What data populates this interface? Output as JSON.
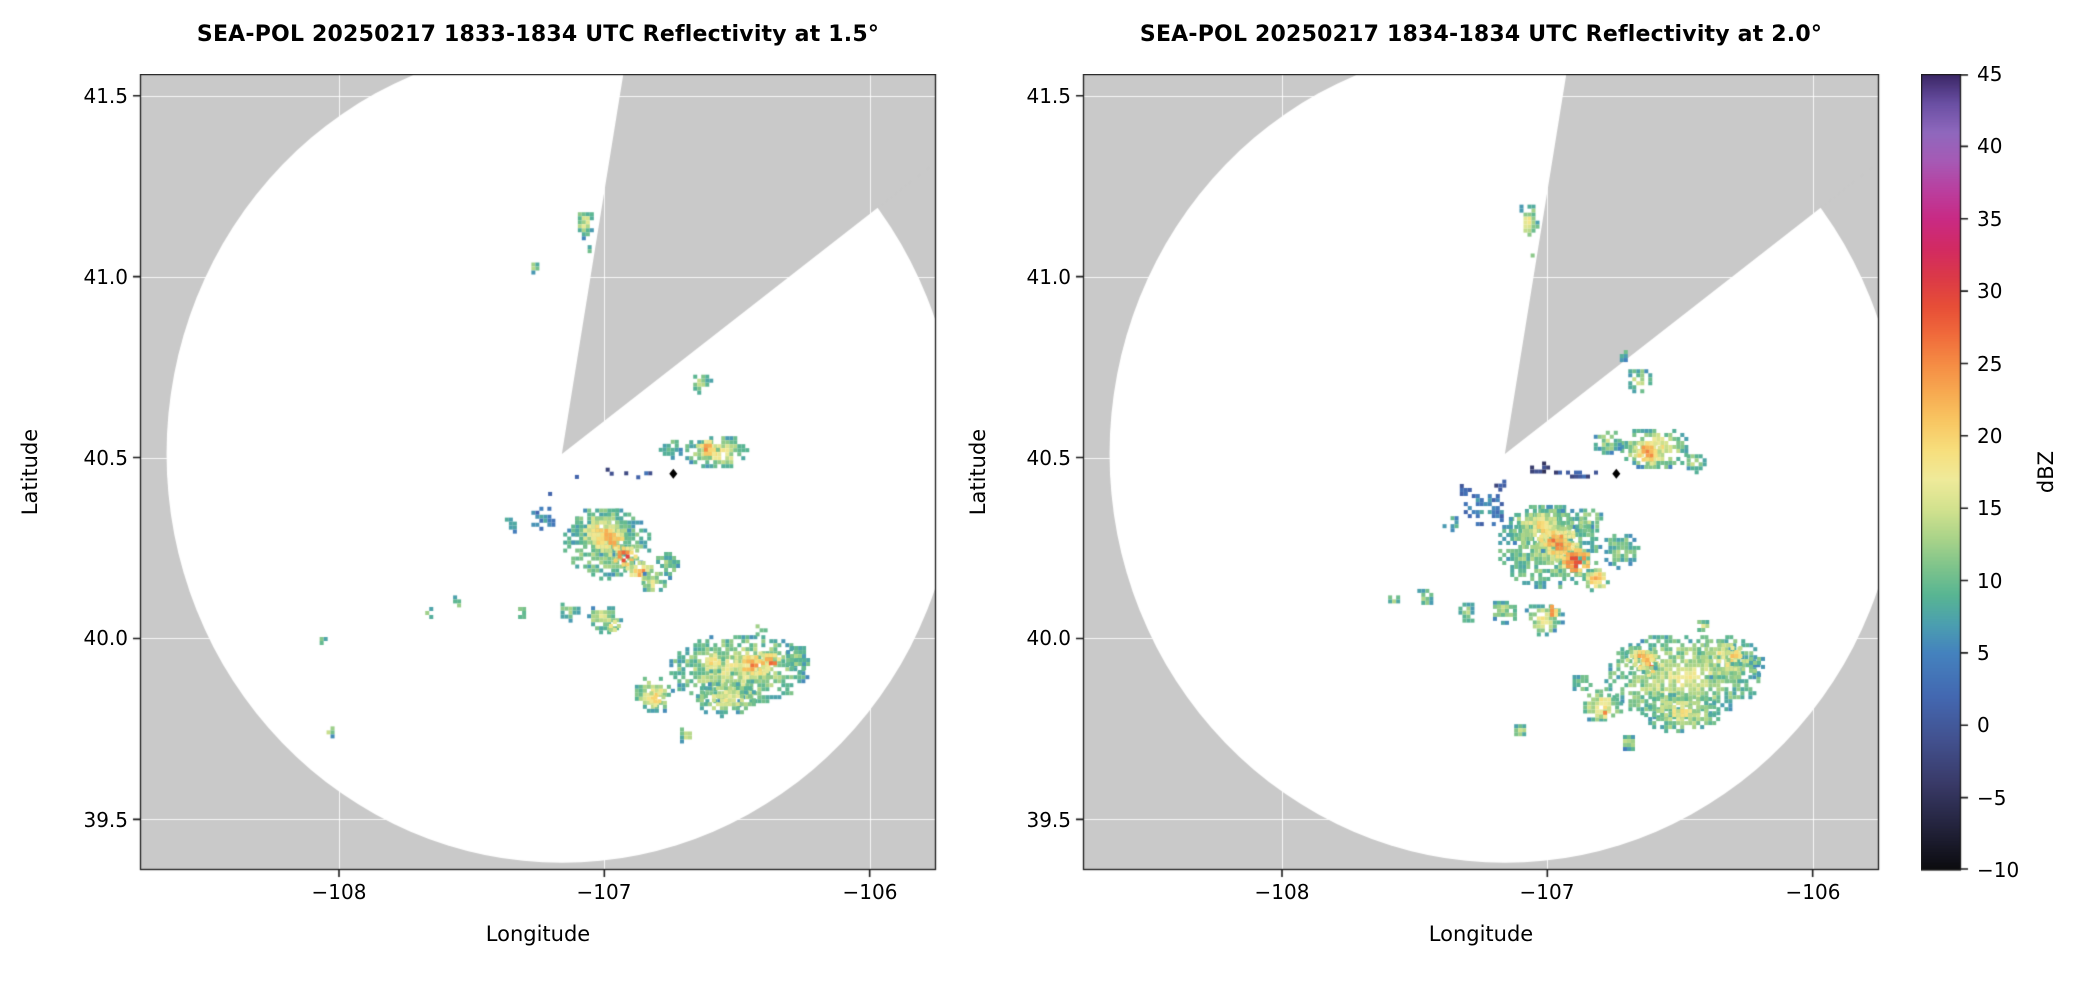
{
  "figure": {
    "background": "#ffffff"
  },
  "colors": {
    "map_background": "#c9c9c9",
    "radar_clear": "#ffffff",
    "grid": "#ffffff",
    "frame": "#1a1a1a",
    "marker": "#000000"
  },
  "chart_data": [
    {
      "type": "heatmap",
      "subtype": "radar-ppi-reflectivity",
      "title": "SEA-POL 20250217 1833-1834 UTC Reflectivity at 1.5°",
      "xlabel": "Longitude",
      "ylabel": "Latitude",
      "xlim": [
        -108.75,
        -105.75
      ],
      "ylim": [
        39.36,
        41.56
      ],
      "xticks": [
        -108,
        -107,
        -106
      ],
      "xtick_labels": [
        "−108",
        "−107",
        "−106"
      ],
      "yticks": [
        41.5,
        41.0,
        40.5,
        40.0,
        39.5
      ],
      "ytick_labels": [
        "41.5",
        "41.0",
        "40.5",
        "40.0",
        "39.5"
      ],
      "grid": true,
      "radar": {
        "center_lon": -107.16,
        "center_lat": 40.51,
        "radius_lon_deg": 1.49,
        "radius_lat_deg": 1.13,
        "blocked_sector_deg": [
          9.5,
          54
        ]
      },
      "site_marker": {
        "lon": -106.74,
        "lat": 40.455
      },
      "echoes": [
        {
          "lon": -107.08,
          "lat": 41.155,
          "rx": 0.035,
          "ry": 0.045,
          "dbz": 16
        },
        {
          "lon": -107.06,
          "lat": 41.08,
          "rx": 0.018,
          "ry": 0.018,
          "dbz": 10
        },
        {
          "lon": -107.27,
          "lat": 41.03,
          "rx": 0.02,
          "ry": 0.02,
          "dbz": 12
        },
        {
          "lon": -106.64,
          "lat": 40.71,
          "rx": 0.04,
          "ry": 0.03,
          "dbz": 13
        },
        {
          "lon": -106.58,
          "lat": 40.52,
          "rx": 0.13,
          "ry": 0.05,
          "dbz": 18
        },
        {
          "lon": -106.62,
          "lat": 40.53,
          "rx": 0.05,
          "ry": 0.03,
          "dbz": 24
        },
        {
          "lon": -106.76,
          "lat": 40.53,
          "rx": 0.05,
          "ry": 0.03,
          "dbz": 12
        },
        {
          "lon": -106.86,
          "lat": 40.46,
          "rx": 0.08,
          "ry": 0.013,
          "dbz": 2,
          "fill": 0.5
        },
        {
          "lon": -106.99,
          "lat": 40.47,
          "rx": 0.02,
          "ry": 0.013,
          "dbz": 0,
          "fill": 0.5
        },
        {
          "lon": -107.11,
          "lat": 40.45,
          "rx": 0.016,
          "ry": 0.013,
          "dbz": 4,
          "fill": 0.5
        },
        {
          "lon": -107.24,
          "lat": 40.34,
          "rx": 0.05,
          "ry": 0.035,
          "dbz": 6,
          "fill": 0.55
        },
        {
          "lon": -107.36,
          "lat": 40.32,
          "rx": 0.03,
          "ry": 0.025,
          "dbz": 8,
          "fill": 0.6
        },
        {
          "lon": -107.22,
          "lat": 40.4,
          "rx": 0.022,
          "ry": 0.016,
          "dbz": 2,
          "fill": 0.5
        },
        {
          "lon": -107.0,
          "lat": 40.27,
          "rx": 0.17,
          "ry": 0.1,
          "dbz": 13,
          "edge": 8
        },
        {
          "lon": -107.02,
          "lat": 40.3,
          "rx": 0.12,
          "ry": 0.07,
          "dbz": 19
        },
        {
          "lon": -106.99,
          "lat": 40.28,
          "rx": 0.07,
          "ry": 0.045,
          "dbz": 26
        },
        {
          "lon": -106.93,
          "lat": 40.23,
          "rx": 0.05,
          "ry": 0.035,
          "dbz": 29
        },
        {
          "lon": -106.87,
          "lat": 40.19,
          "rx": 0.05,
          "ry": 0.035,
          "dbz": 24
        },
        {
          "lon": -106.82,
          "lat": 40.16,
          "rx": 0.05,
          "ry": 0.035,
          "dbz": 17
        },
        {
          "lon": -106.77,
          "lat": 40.21,
          "rx": 0.05,
          "ry": 0.04,
          "dbz": 11
        },
        {
          "lon": -107.01,
          "lat": 40.06,
          "rx": 0.07,
          "ry": 0.04,
          "dbz": 16
        },
        {
          "lon": -106.97,
          "lat": 40.04,
          "rx": 0.028,
          "ry": 0.022,
          "dbz": 23
        },
        {
          "lon": -107.14,
          "lat": 40.08,
          "rx": 0.04,
          "ry": 0.03,
          "dbz": 13
        },
        {
          "lon": -107.32,
          "lat": 40.08,
          "rx": 0.02,
          "ry": 0.018,
          "dbz": 10
        },
        {
          "lon": -107.56,
          "lat": 40.11,
          "rx": 0.025,
          "ry": 0.02,
          "dbz": 13
        },
        {
          "lon": -107.67,
          "lat": 40.08,
          "rx": 0.02,
          "ry": 0.018,
          "dbz": 11
        },
        {
          "lon": -108.07,
          "lat": 40.0,
          "rx": 0.018,
          "ry": 0.015,
          "dbz": 14
        },
        {
          "lon": -108.04,
          "lat": 39.75,
          "rx": 0.022,
          "ry": 0.018,
          "dbz": 16
        },
        {
          "lon": -106.5,
          "lat": 39.92,
          "rx": 0.27,
          "ry": 0.1,
          "dbz": 16,
          "edge": 8
        },
        {
          "lon": -106.45,
          "lat": 39.93,
          "rx": 0.09,
          "ry": 0.045,
          "dbz": 24
        },
        {
          "lon": -106.38,
          "lat": 39.94,
          "rx": 0.045,
          "ry": 0.03,
          "dbz": 28
        },
        {
          "lon": -106.6,
          "lat": 39.94,
          "rx": 0.05,
          "ry": 0.03,
          "dbz": 22
        },
        {
          "lon": -106.55,
          "lat": 39.84,
          "rx": 0.12,
          "ry": 0.05,
          "dbz": 17
        },
        {
          "lon": -106.82,
          "lat": 39.85,
          "rx": 0.08,
          "ry": 0.055,
          "dbz": 19
        },
        {
          "lon": -106.81,
          "lat": 39.84,
          "rx": 0.035,
          "ry": 0.025,
          "dbz": 24
        },
        {
          "lon": -106.28,
          "lat": 39.95,
          "rx": 0.05,
          "ry": 0.04,
          "dbz": 11
        },
        {
          "lon": -106.42,
          "lat": 40.03,
          "rx": 0.025,
          "ry": 0.02,
          "dbz": 13
        },
        {
          "lon": -106.7,
          "lat": 39.74,
          "rx": 0.03,
          "ry": 0.025,
          "dbz": 15
        }
      ]
    },
    {
      "type": "heatmap",
      "subtype": "radar-ppi-reflectivity",
      "title": "SEA-POL 20250217 1834-1834 UTC Reflectivity at 2.0°",
      "xlabel": "Longitude",
      "ylabel": "Latitude",
      "xlim": [
        -108.75,
        -105.75
      ],
      "ylim": [
        39.36,
        41.56
      ],
      "xticks": [
        -108,
        -107,
        -106
      ],
      "xtick_labels": [
        "−108",
        "−107",
        "−106"
      ],
      "yticks": [
        41.5,
        41.0,
        40.5,
        40.0,
        39.5
      ],
      "ytick_labels": [
        "41.5",
        "41.0",
        "40.5",
        "40.0",
        "39.5"
      ],
      "grid": true,
      "radar": {
        "center_lon": -107.16,
        "center_lat": 40.51,
        "radius_lon_deg": 1.49,
        "radius_lat_deg": 1.13,
        "blocked_sector_deg": [
          9.5,
          54
        ]
      },
      "site_marker": {
        "lon": -106.74,
        "lat": 40.455
      },
      "echoes": [
        {
          "lon": -107.08,
          "lat": 41.16,
          "rx": 0.04,
          "ry": 0.05,
          "dbz": 17
        },
        {
          "lon": -107.06,
          "lat": 41.07,
          "rx": 0.018,
          "ry": 0.016,
          "dbz": 10
        },
        {
          "lon": -106.66,
          "lat": 40.72,
          "rx": 0.05,
          "ry": 0.035,
          "dbz": 14
        },
        {
          "lon": -106.72,
          "lat": 40.79,
          "rx": 0.022,
          "ry": 0.018,
          "dbz": 10
        },
        {
          "lon": -106.6,
          "lat": 40.53,
          "rx": 0.14,
          "ry": 0.06,
          "dbz": 19
        },
        {
          "lon": -106.63,
          "lat": 40.52,
          "rx": 0.06,
          "ry": 0.035,
          "dbz": 26
        },
        {
          "lon": -106.78,
          "lat": 40.55,
          "rx": 0.06,
          "ry": 0.035,
          "dbz": 13
        },
        {
          "lon": -106.45,
          "lat": 40.49,
          "rx": 0.04,
          "ry": 0.03,
          "dbz": 14
        },
        {
          "lon": -106.89,
          "lat": 40.46,
          "rx": 0.1,
          "ry": 0.015,
          "dbz": 1,
          "fill": 0.5
        },
        {
          "lon": -107.04,
          "lat": 40.48,
          "rx": 0.04,
          "ry": 0.02,
          "dbz": 0,
          "fill": 0.5
        },
        {
          "lon": -107.24,
          "lat": 40.36,
          "rx": 0.09,
          "ry": 0.05,
          "dbz": 6,
          "fill": 0.5
        },
        {
          "lon": -107.36,
          "lat": 40.33,
          "rx": 0.05,
          "ry": 0.03,
          "dbz": 8,
          "fill": 0.55
        },
        {
          "lon": -107.18,
          "lat": 40.43,
          "rx": 0.05,
          "ry": 0.02,
          "dbz": 1,
          "fill": 0.45
        },
        {
          "lon": -107.32,
          "lat": 40.42,
          "rx": 0.025,
          "ry": 0.018,
          "dbz": 3,
          "fill": 0.5
        },
        {
          "lon": -107.0,
          "lat": 40.26,
          "rx": 0.2,
          "ry": 0.12,
          "dbz": 13,
          "edge": 8
        },
        {
          "lon": -107.03,
          "lat": 40.31,
          "rx": 0.13,
          "ry": 0.07,
          "dbz": 19
        },
        {
          "lon": -106.97,
          "lat": 40.27,
          "rx": 0.09,
          "ry": 0.05,
          "dbz": 26
        },
        {
          "lon": -106.9,
          "lat": 40.22,
          "rx": 0.06,
          "ry": 0.04,
          "dbz": 30
        },
        {
          "lon": -106.82,
          "lat": 40.17,
          "rx": 0.05,
          "ry": 0.035,
          "dbz": 23
        },
        {
          "lon": -106.73,
          "lat": 40.25,
          "rx": 0.07,
          "ry": 0.05,
          "dbz": 12
        },
        {
          "lon": -106.85,
          "lat": 40.33,
          "rx": 0.06,
          "ry": 0.04,
          "dbz": 14
        },
        {
          "lon": -107.02,
          "lat": 40.06,
          "rx": 0.08,
          "ry": 0.045,
          "dbz": 17
        },
        {
          "lon": -106.99,
          "lat": 40.08,
          "rx": 0.03,
          "ry": 0.024,
          "dbz": 27
        },
        {
          "lon": -107.17,
          "lat": 40.08,
          "rx": 0.05,
          "ry": 0.035,
          "dbz": 14
        },
        {
          "lon": -107.31,
          "lat": 40.08,
          "rx": 0.04,
          "ry": 0.03,
          "dbz": 12
        },
        {
          "lon": -107.47,
          "lat": 40.12,
          "rx": 0.035,
          "ry": 0.028,
          "dbz": 13
        },
        {
          "lon": -107.59,
          "lat": 40.11,
          "rx": 0.025,
          "ry": 0.02,
          "dbz": 12
        },
        {
          "lon": -106.5,
          "lat": 39.9,
          "rx": 0.3,
          "ry": 0.12,
          "dbz": 16,
          "edge": 8
        },
        {
          "lon": -106.63,
          "lat": 39.93,
          "rx": 0.04,
          "ry": 0.03,
          "dbz": 29
        },
        {
          "lon": -106.65,
          "lat": 39.95,
          "rx": 0.07,
          "ry": 0.04,
          "dbz": 23
        },
        {
          "lon": -106.33,
          "lat": 39.95,
          "rx": 0.12,
          "ry": 0.07,
          "dbz": 19
        },
        {
          "lon": -106.3,
          "lat": 39.96,
          "rx": 0.04,
          "ry": 0.03,
          "dbz": 23
        },
        {
          "lon": -106.5,
          "lat": 39.8,
          "rx": 0.15,
          "ry": 0.06,
          "dbz": 17
        },
        {
          "lon": -106.8,
          "lat": 39.82,
          "rx": 0.08,
          "ry": 0.05,
          "dbz": 19
        },
        {
          "lon": -106.79,
          "lat": 39.8,
          "rx": 0.03,
          "ry": 0.022,
          "dbz": 24
        },
        {
          "lon": -106.88,
          "lat": 39.88,
          "rx": 0.04,
          "ry": 0.03,
          "dbz": 11
        },
        {
          "lon": -107.11,
          "lat": 39.75,
          "rx": 0.03,
          "ry": 0.024,
          "dbz": 14
        },
        {
          "lon": -106.7,
          "lat": 39.72,
          "rx": 0.03,
          "ry": 0.024,
          "dbz": 15
        },
        {
          "lon": -106.42,
          "lat": 40.04,
          "rx": 0.03,
          "ry": 0.022,
          "dbz": 14
        },
        {
          "lon": -106.22,
          "lat": 39.93,
          "rx": 0.035,
          "ry": 0.03,
          "dbz": 11
        }
      ]
    }
  ],
  "colorbar": {
    "label": "dBZ",
    "min": -10,
    "max": 45,
    "ticks": [
      45,
      40,
      35,
      30,
      25,
      20,
      15,
      10,
      5,
      0,
      -5,
      -10
    ],
    "tick_labels": [
      "45",
      "40",
      "35",
      "30",
      "25",
      "20",
      "15",
      "10",
      "5",
      "0",
      "−5",
      "−10"
    ],
    "stops": [
      [
        -10,
        "#0b0b0e"
      ],
      [
        -7,
        "#23233c"
      ],
      [
        -4,
        "#393a68"
      ],
      [
        -1,
        "#42518f"
      ],
      [
        2,
        "#4368b1"
      ],
      [
        5,
        "#4482be"
      ],
      [
        7,
        "#4b9fb0"
      ],
      [
        9,
        "#58b593"
      ],
      [
        11,
        "#7fc48b"
      ],
      [
        13,
        "#abd489"
      ],
      [
        15,
        "#d3e28e"
      ],
      [
        17,
        "#efea9a"
      ],
      [
        19,
        "#f7df7d"
      ],
      [
        21,
        "#f8c763"
      ],
      [
        23,
        "#f7aa51"
      ],
      [
        25,
        "#f58c44"
      ],
      [
        27,
        "#f06b3b"
      ],
      [
        29,
        "#e74e37"
      ],
      [
        31,
        "#db3948"
      ],
      [
        33,
        "#d22a63"
      ],
      [
        35,
        "#c92a84"
      ],
      [
        37,
        "#ba3f9f"
      ],
      [
        39,
        "#a65ab5"
      ],
      [
        41,
        "#8f68bd"
      ],
      [
        43,
        "#6a4fa3"
      ],
      [
        45,
        "#3a2766"
      ]
    ]
  }
}
